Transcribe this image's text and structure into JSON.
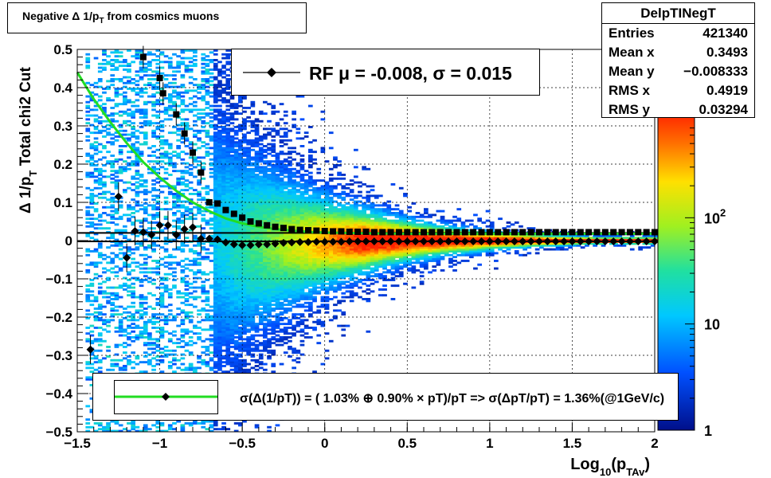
{
  "title": "Negative Δ 1/p_T from cosmics muons",
  "title_parts": {
    "main": "Negative Δ 1/p",
    "sub": "T",
    "rest": " from cosmics muons"
  },
  "stats": {
    "name": "DelpTINegT",
    "rows": [
      {
        "label": "Entries",
        "value": "421340"
      },
      {
        "label": "Mean x",
        "value": "0.3493"
      },
      {
        "label": "Mean y",
        "value": "−0.008333"
      },
      {
        "label": "RMS x",
        "value": "0.4919"
      },
      {
        "label": "RMS y",
        "value": "0.03294"
      }
    ]
  },
  "legend": {
    "text": "RF μ = -0.008, σ =   0.015"
  },
  "fit_legend": {
    "text": "σ(Δ(1/pT)) = ( 1.03% ⊕  0.90% × pT)/pT => σ(ΔpT/pT) =  1.36%(@1GeV/c)"
  },
  "colors": {
    "fit_curve": "#22dd22",
    "markers": "#000000"
  },
  "chart_data": {
    "type": "heatmap",
    "title": "Negative Δ 1/p_T from cosmics muons",
    "xlabel": "Log10(pTAv)",
    "xlabel_parts": {
      "main": "Log",
      "sub1": "10",
      "mid": "(p",
      "sub2": "TAv",
      "end": ")"
    },
    "ylabel": "Δ 1/p_T  Total chi2 Cut",
    "ylabel_parts": {
      "main": "Δ 1/p",
      "sub": "T",
      "rest": "  Total chi2 Cut"
    },
    "xlim": [
      -1.5,
      2
    ],
    "ylim": [
      -0.5,
      0.5
    ],
    "x_ticks": [
      -1.5,
      -1,
      -0.5,
      0,
      0.5,
      1,
      1.5,
      2
    ],
    "x_tick_labels": [
      "−1.5",
      "−1",
      "−0.5",
      "0",
      "0.5",
      "1",
      "1.5",
      "2"
    ],
    "y_ticks": [
      -0.5,
      -0.4,
      -0.3,
      -0.2,
      -0.1,
      0,
      0.1,
      0.2,
      0.3,
      0.4,
      0.5
    ],
    "y_tick_labels": [
      "−0.5",
      "−0.4",
      "−0.3",
      "−0.2",
      "−0.1",
      "0",
      "0.1",
      "0.2",
      "0.3",
      "0.4",
      "0.5"
    ],
    "grid": true,
    "colorbar": {
      "scale": "log",
      "ticks": [
        1,
        10,
        100
      ],
      "tick_labels": [
        "1",
        "10",
        "10^2"
      ]
    },
    "mean_points": [
      {
        "x": -1.42,
        "y": -0.285
      },
      {
        "x": -1.25,
        "y": 0.115
      },
      {
        "x": -1.2,
        "y": -0.045
      },
      {
        "x": -1.15,
        "y": 0.025
      },
      {
        "x": -1.1,
        "y": 0.022
      },
      {
        "x": -1.05,
        "y": 0.015
      },
      {
        "x": -1.0,
        "y": 0.04
      },
      {
        "x": -0.95,
        "y": 0.04
      },
      {
        "x": -0.9,
        "y": 0.015
      },
      {
        "x": -0.85,
        "y": 0.03
      },
      {
        "x": -0.8,
        "y": 0.035
      },
      {
        "x": -0.75,
        "y": 0.005
      },
      {
        "x": -0.7,
        "y": 0.005
      },
      {
        "x": -0.65,
        "y": 0.003
      },
      {
        "x": -0.6,
        "y": -0.005
      },
      {
        "x": -0.55,
        "y": -0.01
      },
      {
        "x": -0.5,
        "y": -0.012
      },
      {
        "x": -0.45,
        "y": -0.012
      },
      {
        "x": -0.4,
        "y": -0.01
      },
      {
        "x": -0.35,
        "y": -0.01
      },
      {
        "x": -0.3,
        "y": -0.008
      },
      {
        "x": -0.25,
        "y": -0.006
      },
      {
        "x": -0.2,
        "y": -0.005
      },
      {
        "x": -0.15,
        "y": -0.004
      },
      {
        "x": -0.1,
        "y": -0.004
      },
      {
        "x": -0.05,
        "y": -0.003
      },
      {
        "x": 0.0,
        "y": -0.003
      },
      {
        "x": 0.05,
        "y": -0.003
      },
      {
        "x": 0.1,
        "y": -0.003
      },
      {
        "x": 0.15,
        "y": -0.002
      },
      {
        "x": 0.2,
        "y": -0.002
      },
      {
        "x": 0.25,
        "y": -0.002
      },
      {
        "x": 0.3,
        "y": -0.002
      },
      {
        "x": 0.35,
        "y": -0.002
      },
      {
        "x": 0.4,
        "y": -0.002
      },
      {
        "x": 0.45,
        "y": -0.002
      },
      {
        "x": 0.5,
        "y": -0.002
      },
      {
        "x": 0.55,
        "y": -0.002
      },
      {
        "x": 0.6,
        "y": -0.002
      },
      {
        "x": 0.65,
        "y": -0.002
      },
      {
        "x": 0.7,
        "y": -0.002
      },
      {
        "x": 0.75,
        "y": -0.002
      },
      {
        "x": 0.8,
        "y": -0.002
      },
      {
        "x": 0.85,
        "y": -0.002
      },
      {
        "x": 0.9,
        "y": -0.002
      },
      {
        "x": 0.95,
        "y": -0.002
      },
      {
        "x": 1.0,
        "y": -0.002
      },
      {
        "x": 1.05,
        "y": -0.002
      },
      {
        "x": 1.1,
        "y": -0.002
      },
      {
        "x": 1.15,
        "y": -0.002
      },
      {
        "x": 1.2,
        "y": -0.002
      },
      {
        "x": 1.25,
        "y": -0.002
      },
      {
        "x": 1.3,
        "y": -0.002
      },
      {
        "x": 1.35,
        "y": -0.002
      },
      {
        "x": 1.4,
        "y": -0.002
      },
      {
        "x": 1.45,
        "y": -0.002
      },
      {
        "x": 1.5,
        "y": -0.002
      },
      {
        "x": 1.55,
        "y": -0.002
      },
      {
        "x": 1.6,
        "y": -0.002
      },
      {
        "x": 1.65,
        "y": -0.002
      },
      {
        "x": 1.7,
        "y": -0.002
      },
      {
        "x": 1.75,
        "y": -0.002
      },
      {
        "x": 1.8,
        "y": -0.002
      },
      {
        "x": 1.85,
        "y": -0.002
      },
      {
        "x": 1.9,
        "y": -0.002
      },
      {
        "x": 1.95,
        "y": -0.002
      },
      {
        "x": 2.0,
        "y": -0.002
      }
    ],
    "sigma_points": [
      {
        "x": -1.1,
        "y": 0.48
      },
      {
        "x": -1.0,
        "y": 0.425
      },
      {
        "x": -0.98,
        "y": 0.385
      },
      {
        "x": -0.9,
        "y": 0.33
      },
      {
        "x": -0.85,
        "y": 0.28
      },
      {
        "x": -0.8,
        "y": 0.23
      },
      {
        "x": -0.75,
        "y": 0.178
      },
      {
        "x": -0.7,
        "y": 0.1
      },
      {
        "x": -0.65,
        "y": 0.097
      },
      {
        "x": -0.6,
        "y": 0.08
      },
      {
        "x": -0.55,
        "y": 0.07
      },
      {
        "x": -0.5,
        "y": 0.06
      },
      {
        "x": -0.45,
        "y": 0.05
      },
      {
        "x": -0.4,
        "y": 0.045
      },
      {
        "x": -0.35,
        "y": 0.04
      },
      {
        "x": -0.3,
        "y": 0.036
      },
      {
        "x": -0.25,
        "y": 0.033
      },
      {
        "x": -0.2,
        "y": 0.03
      },
      {
        "x": -0.15,
        "y": 0.028
      },
      {
        "x": -0.1,
        "y": 0.027
      },
      {
        "x": -0.05,
        "y": 0.026
      },
      {
        "x": 0.0,
        "y": 0.025
      },
      {
        "x": 0.05,
        "y": 0.024
      },
      {
        "x": 0.1,
        "y": 0.024
      },
      {
        "x": 0.15,
        "y": 0.023
      },
      {
        "x": 0.2,
        "y": 0.023
      },
      {
        "x": 0.25,
        "y": 0.023
      },
      {
        "x": 0.3,
        "y": 0.022
      },
      {
        "x": 0.35,
        "y": 0.022
      },
      {
        "x": 0.4,
        "y": 0.022
      },
      {
        "x": 0.45,
        "y": 0.022
      },
      {
        "x": 0.5,
        "y": 0.022
      },
      {
        "x": 0.55,
        "y": 0.022
      },
      {
        "x": 0.6,
        "y": 0.022
      },
      {
        "x": 0.65,
        "y": 0.022
      },
      {
        "x": 0.7,
        "y": 0.022
      },
      {
        "x": 0.75,
        "y": 0.022
      },
      {
        "x": 0.8,
        "y": 0.022
      },
      {
        "x": 0.85,
        "y": 0.022
      },
      {
        "x": 0.9,
        "y": 0.022
      },
      {
        "x": 0.95,
        "y": 0.022
      },
      {
        "x": 1.0,
        "y": 0.022
      },
      {
        "x": 1.05,
        "y": 0.022
      },
      {
        "x": 1.1,
        "y": 0.022
      },
      {
        "x": 1.15,
        "y": 0.022
      },
      {
        "x": 1.2,
        "y": 0.022
      },
      {
        "x": 1.25,
        "y": 0.022
      },
      {
        "x": 1.3,
        "y": 0.022
      },
      {
        "x": 1.35,
        "y": 0.022
      },
      {
        "x": 1.4,
        "y": 0.022
      },
      {
        "x": 1.45,
        "y": 0.022
      },
      {
        "x": 1.5,
        "y": 0.022
      },
      {
        "x": 1.55,
        "y": 0.022
      },
      {
        "x": 1.6,
        "y": 0.022
      },
      {
        "x": 1.65,
        "y": 0.022
      },
      {
        "x": 1.7,
        "y": 0.022
      },
      {
        "x": 1.75,
        "y": 0.022
      },
      {
        "x": 1.8,
        "y": 0.022
      },
      {
        "x": 1.85,
        "y": 0.022
      },
      {
        "x": 1.9,
        "y": 0.022
      },
      {
        "x": 1.95,
        "y": 0.022
      },
      {
        "x": 2.0,
        "y": 0.022
      }
    ],
    "fit_curve": {
      "x": [
        -1.5,
        -1.4,
        -1.3,
        -1.2,
        -1.1,
        -1.0,
        -0.9,
        -0.8,
        -0.7,
        -0.6,
        -0.5,
        -0.4,
        -0.3,
        -0.2,
        -0.1,
        0.0,
        0.25,
        0.5,
        1.0,
        1.5,
        2.0
      ],
      "y": [
        0.44,
        0.37,
        0.31,
        0.255,
        0.205,
        0.165,
        0.13,
        0.1,
        0.077,
        0.058,
        0.045,
        0.036,
        0.03,
        0.026,
        0.023,
        0.021,
        0.019,
        0.018,
        0.018,
        0.018,
        0.018
      ]
    },
    "mean_fit_line": {
      "x": [
        -1.5,
        2.0
      ],
      "y": [
        -0.002,
        -0.002
      ]
    },
    "sigma_fit_line": {
      "x": [
        -1.5,
        2.0
      ],
      "y": [
        0.02,
        0.02
      ]
    }
  }
}
